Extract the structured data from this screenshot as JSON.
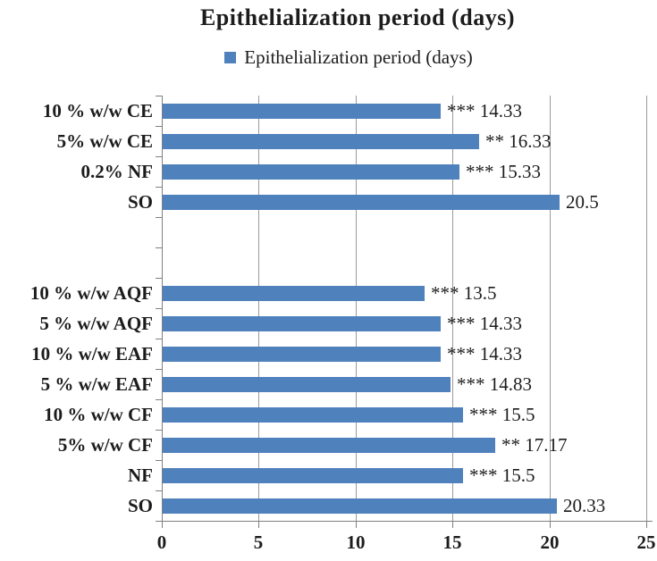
{
  "title": "Epithelialization period (days)",
  "legend": {
    "label": "Epithelialization period (days)",
    "marker_color": "#4F81BD"
  },
  "colors": {
    "bar": "#4F81BD",
    "gridline": "#9a9a9a",
    "axis": "#808080",
    "text": "#1c1c1c",
    "background": "#ffffff"
  },
  "chart_data": {
    "type": "bar",
    "orientation": "horizontal",
    "title": "Epithelialization period (days)",
    "legend_entries": [
      "Epithelialization period (days)"
    ],
    "legend_position": "top-center",
    "xlabel": "",
    "ylabel": "",
    "xlim": [
      0,
      25
    ],
    "xticks": [
      0,
      5,
      10,
      15,
      20,
      25
    ],
    "grid": true,
    "rows": [
      {
        "category": "10 % w/w CE",
        "value": 14.33,
        "significance": "***",
        "label": "*** 14.33"
      },
      {
        "category": "5% w/w CE",
        "value": 16.33,
        "significance": "**",
        "label": "** 16.33"
      },
      {
        "category": "0.2% NF",
        "value": 15.33,
        "significance": "***",
        "label": "*** 15.33"
      },
      {
        "category": "SO",
        "value": 20.5,
        "significance": "",
        "label": "20.5"
      },
      {
        "category": "",
        "value": null,
        "significance": "",
        "label": ""
      },
      {
        "category": "",
        "value": null,
        "significance": "",
        "label": ""
      },
      {
        "category": "10 % w/w AQF",
        "value": 13.5,
        "significance": "***",
        "label": "*** 13.5"
      },
      {
        "category": "5 % w/w AQF",
        "value": 14.33,
        "significance": "***",
        "label": "*** 14.33"
      },
      {
        "category": "10 % w/w EAF",
        "value": 14.33,
        "significance": "***",
        "label": "*** 14.33"
      },
      {
        "category": "5 % w/w EAF",
        "value": 14.83,
        "significance": "***",
        "label": "*** 14.83"
      },
      {
        "category": "10 % w/w CF",
        "value": 15.5,
        "significance": "***",
        "label": "*** 15.5"
      },
      {
        "category": "5% w/w CF",
        "value": 17.17,
        "significance": "**",
        "label": "** 17.17"
      },
      {
        "category": "NF",
        "value": 15.5,
        "significance": "***",
        "label": "*** 15.5"
      },
      {
        "category": "SO",
        "value": 20.33,
        "significance": "",
        "label": "20.33"
      }
    ]
  }
}
